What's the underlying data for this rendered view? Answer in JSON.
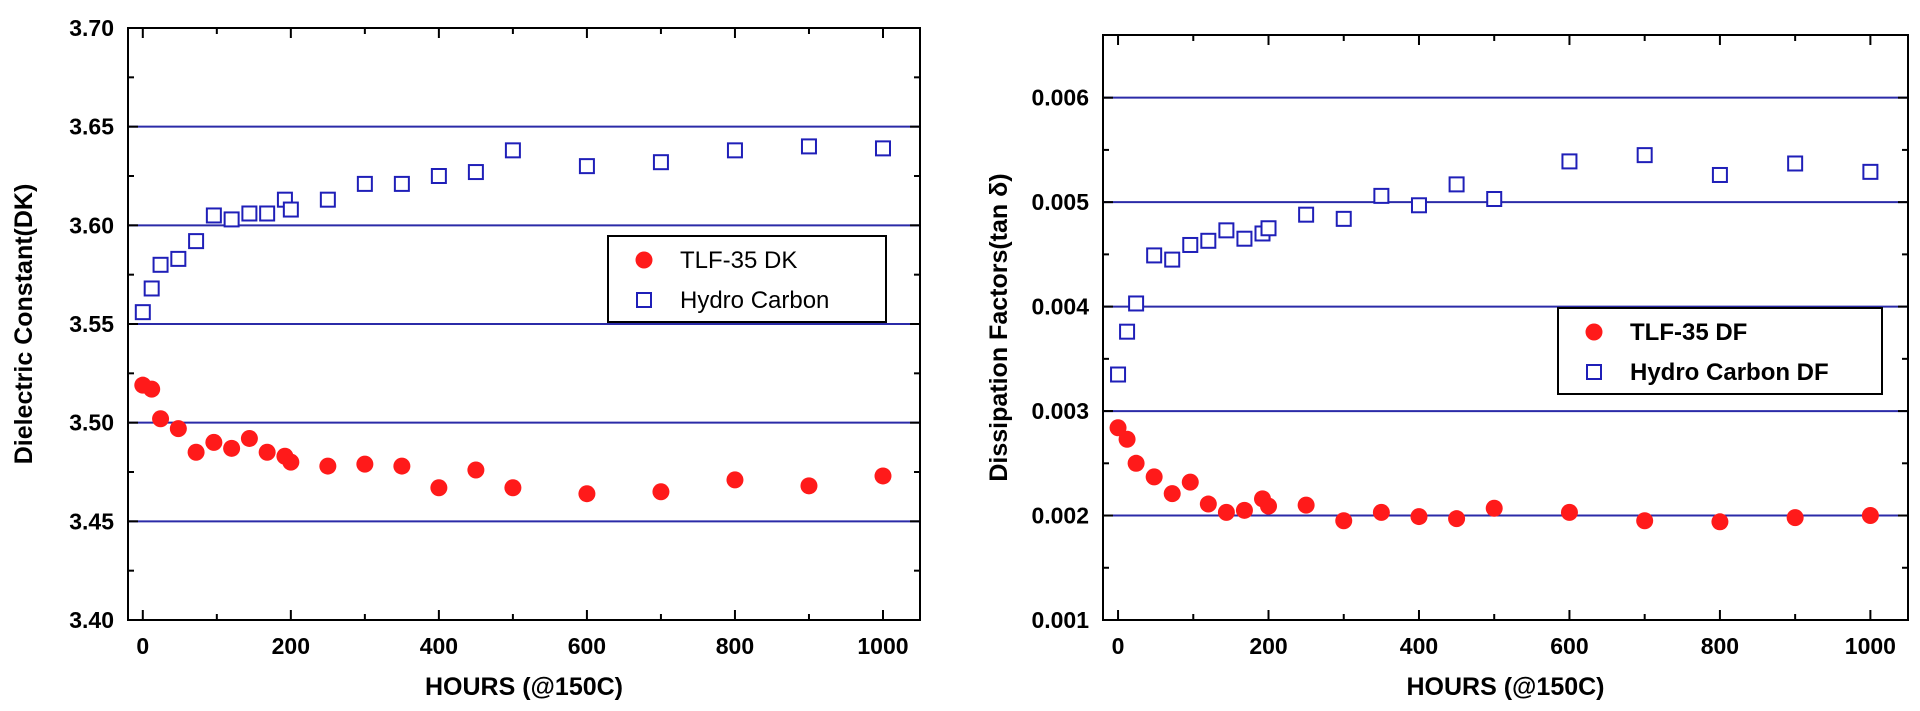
{
  "chart_data": [
    {
      "type": "scatter",
      "title": "",
      "xlabel": "HOURS (@150C)",
      "ylabel": "Dielectric Constant(DK)",
      "xlim": [
        -20,
        1050
      ],
      "ylim": [
        3.4,
        3.7
      ],
      "xticks": [
        0,
        200,
        400,
        600,
        800,
        1000
      ],
      "yticks": [
        3.4,
        3.45,
        3.5,
        3.55,
        3.6,
        3.65,
        3.7
      ],
      "x_tick_labels": [
        "0",
        "200",
        "400",
        "600",
        "800",
        "1000"
      ],
      "y_tick_labels": [
        "3.40",
        "3.45",
        "3.50",
        "3.55",
        "3.60",
        "3.65",
        "3.70"
      ],
      "gridlines_y": [
        3.45,
        3.5,
        3.55,
        3.6,
        3.65
      ],
      "grid_color": "#2b2ba8",
      "legend_position": "right-middle",
      "legend_bold": false,
      "series": [
        {
          "name": "TLF-35 DK",
          "marker": "filled-circle",
          "color": "#ff1a1a",
          "x": [
            0,
            12,
            24,
            48,
            72,
            96,
            120,
            144,
            168,
            192,
            200,
            250,
            300,
            350,
            400,
            450,
            500,
            600,
            700,
            800,
            900,
            1000
          ],
          "y": [
            3.519,
            3.517,
            3.502,
            3.497,
            3.485,
            3.49,
            3.487,
            3.492,
            3.485,
            3.483,
            3.48,
            3.478,
            3.479,
            3.478,
            3.467,
            3.476,
            3.467,
            3.464,
            3.465,
            3.471,
            3.468,
            3.473
          ]
        },
        {
          "name": "Hydro Carbon",
          "marker": "open-square",
          "color": "#1f1fb8",
          "x": [
            0,
            12,
            24,
            48,
            72,
            96,
            120,
            144,
            168,
            192,
            200,
            250,
            300,
            350,
            400,
            450,
            500,
            600,
            700,
            800,
            900,
            1000
          ],
          "y": [
            3.556,
            3.568,
            3.58,
            3.583,
            3.592,
            3.605,
            3.603,
            3.606,
            3.606,
            3.613,
            3.608,
            3.613,
            3.621,
            3.621,
            3.625,
            3.627,
            3.638,
            3.63,
            3.632,
            3.638,
            3.64,
            3.639
          ]
        }
      ]
    },
    {
      "type": "scatter",
      "title": "",
      "xlabel": "HOURS (@150C)",
      "ylabel": "Dissipation Factors(tan δ)",
      "xlim": [
        -20,
        1050
      ],
      "ylim": [
        0.001,
        0.0066
      ],
      "xticks": [
        0,
        200,
        400,
        600,
        800,
        1000
      ],
      "yticks": [
        0.001,
        0.002,
        0.003,
        0.004,
        0.005,
        0.006
      ],
      "x_tick_labels": [
        "0",
        "200",
        "400",
        "600",
        "800",
        "1000"
      ],
      "y_tick_labels": [
        "0.001",
        "0.002",
        "0.003",
        "0.004",
        "0.005",
        "0.006"
      ],
      "gridlines_y": [
        0.002,
        0.003,
        0.004,
        0.005,
        0.006
      ],
      "grid_color": "#2b2ba8",
      "legend_position": "right-middle",
      "legend_bold": true,
      "series": [
        {
          "name": "TLF-35 DF",
          "marker": "filled-circle",
          "color": "#ff1a1a",
          "x": [
            0,
            12,
            24,
            48,
            72,
            96,
            120,
            144,
            168,
            192,
            200,
            250,
            300,
            350,
            400,
            450,
            500,
            600,
            700,
            800,
            900,
            1000
          ],
          "y": [
            0.00284,
            0.00273,
            0.0025,
            0.00237,
            0.00221,
            0.00232,
            0.00211,
            0.00203,
            0.00205,
            0.00216,
            0.00209,
            0.0021,
            0.00195,
            0.00203,
            0.00199,
            0.00197,
            0.00207,
            0.00203,
            0.00195,
            0.00194,
            0.00198,
            0.002
          ]
        },
        {
          "name": "Hydro Carbon DF",
          "marker": "open-square",
          "color": "#1f1fb8",
          "x": [
            0,
            12,
            24,
            48,
            72,
            96,
            120,
            144,
            168,
            192,
            200,
            250,
            300,
            350,
            400,
            450,
            500,
            600,
            700,
            800,
            900,
            1000
          ],
          "y": [
            0.00335,
            0.00376,
            0.00403,
            0.00449,
            0.00445,
            0.00459,
            0.00463,
            0.00473,
            0.00465,
            0.0047,
            0.00475,
            0.00488,
            0.00484,
            0.00506,
            0.00497,
            0.00517,
            0.00503,
            0.00539,
            0.00545,
            0.00526,
            0.00537,
            0.00529
          ]
        }
      ]
    }
  ]
}
